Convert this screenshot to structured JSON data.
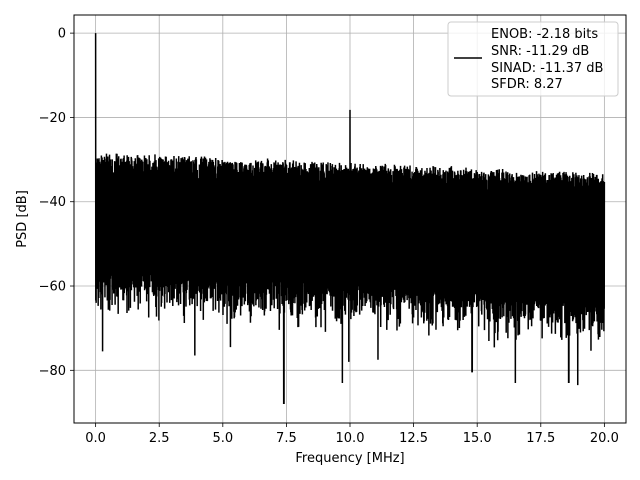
{
  "chart_data": {
    "type": "line",
    "title": "",
    "xlabel": "Frequency [MHz]",
    "ylabel": "PSD [dB]",
    "xlim": [
      -0.85,
      20.85
    ],
    "ylim": [
      -92.5,
      4.3
    ],
    "x_ticks": [
      0.0,
      2.5,
      5.0,
      7.5,
      10.0,
      12.5,
      15.0,
      17.5,
      20.0
    ],
    "x_tick_labels": [
      "0.0",
      "2.5",
      "5.0",
      "7.5",
      "10.0",
      "12.5",
      "15.0",
      "17.5",
      "20.0"
    ],
    "y_ticks": [
      0,
      -20,
      -40,
      -60,
      -80
    ],
    "y_tick_labels": [
      "0",
      "−20",
      "−40",
      "−60",
      "−80"
    ],
    "grid": true,
    "legend_position": "top-right",
    "series": [
      {
        "name": "ENOB: -2.18 bits\nSNR: -11.29 dB\nSINAD: -11.37 dB\nSFDR: 8.27",
        "legend_lines": [
          "ENOB: -2.18 bits",
          "SNR: -11.29 dB",
          "SINAD: -11.37 dB",
          "SFDR: 8.27"
        ],
        "color": "#000000",
        "x_range": [
          0.0,
          20.0
        ],
        "noise_floor_upper_start": -28,
        "noise_floor_upper_end": -33,
        "noise_floor_lower_start": -58,
        "noise_floor_lower_end": -65,
        "peaks": [
          {
            "x": 0.0,
            "y": 0.0
          },
          {
            "x": 10.0,
            "y": -18.2
          }
        ],
        "dips": [
          {
            "x": 0.27,
            "y": -75.5
          },
          {
            "x": 3.9,
            "y": -76.5
          },
          {
            "x": 5.3,
            "y": -74.5
          },
          {
            "x": 7.4,
            "y": -88.0
          },
          {
            "x": 9.7,
            "y": -83.0
          },
          {
            "x": 9.95,
            "y": -78.0
          },
          {
            "x": 11.1,
            "y": -77.5
          },
          {
            "x": 14.8,
            "y": -80.5
          },
          {
            "x": 16.5,
            "y": -83.0
          },
          {
            "x": 18.6,
            "y": -83.0
          },
          {
            "x": 18.95,
            "y": -83.5
          }
        ]
      }
    ]
  }
}
